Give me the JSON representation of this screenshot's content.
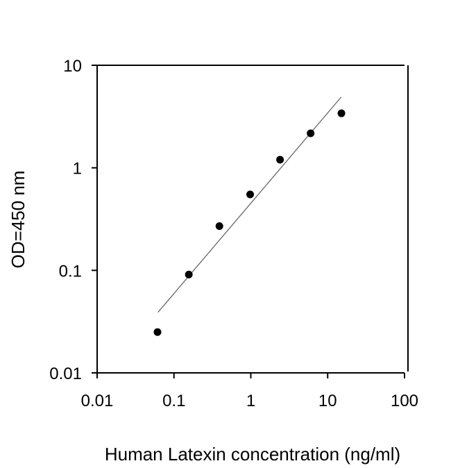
{
  "chart_data": {
    "type": "scatter",
    "title": "",
    "xlabel": "Human Latexin concentration (ng/ml)",
    "ylabel": "OD=450 nm",
    "xscale": "log",
    "yscale": "log",
    "xlim": [
      0.01,
      100
    ],
    "ylim": [
      0.01,
      10
    ],
    "x_ticks": [
      0.01,
      0.1,
      1,
      10,
      100
    ],
    "x_tick_labels": [
      "0.01",
      "0.1",
      "1",
      "10",
      "100"
    ],
    "y_ticks": [
      0.01,
      0.1,
      1,
      10
    ],
    "y_tick_labels": [
      "0.01",
      "0.1",
      "1",
      "10"
    ],
    "grid": false,
    "legend": null,
    "series": [
      {
        "name": "Standard points",
        "marker": "filled-circle",
        "color": "#000000",
        "x": [
          0.061,
          0.156,
          0.39,
          0.98,
          2.4,
          6.0,
          15.1
        ],
        "y": [
          0.025,
          0.091,
          0.27,
          0.55,
          1.2,
          2.17,
          3.4
        ]
      },
      {
        "name": "Fit line",
        "type": "line",
        "color": "#666666",
        "x": [
          0.062,
          15.0
        ],
        "y": [
          0.039,
          4.9
        ]
      }
    ]
  }
}
